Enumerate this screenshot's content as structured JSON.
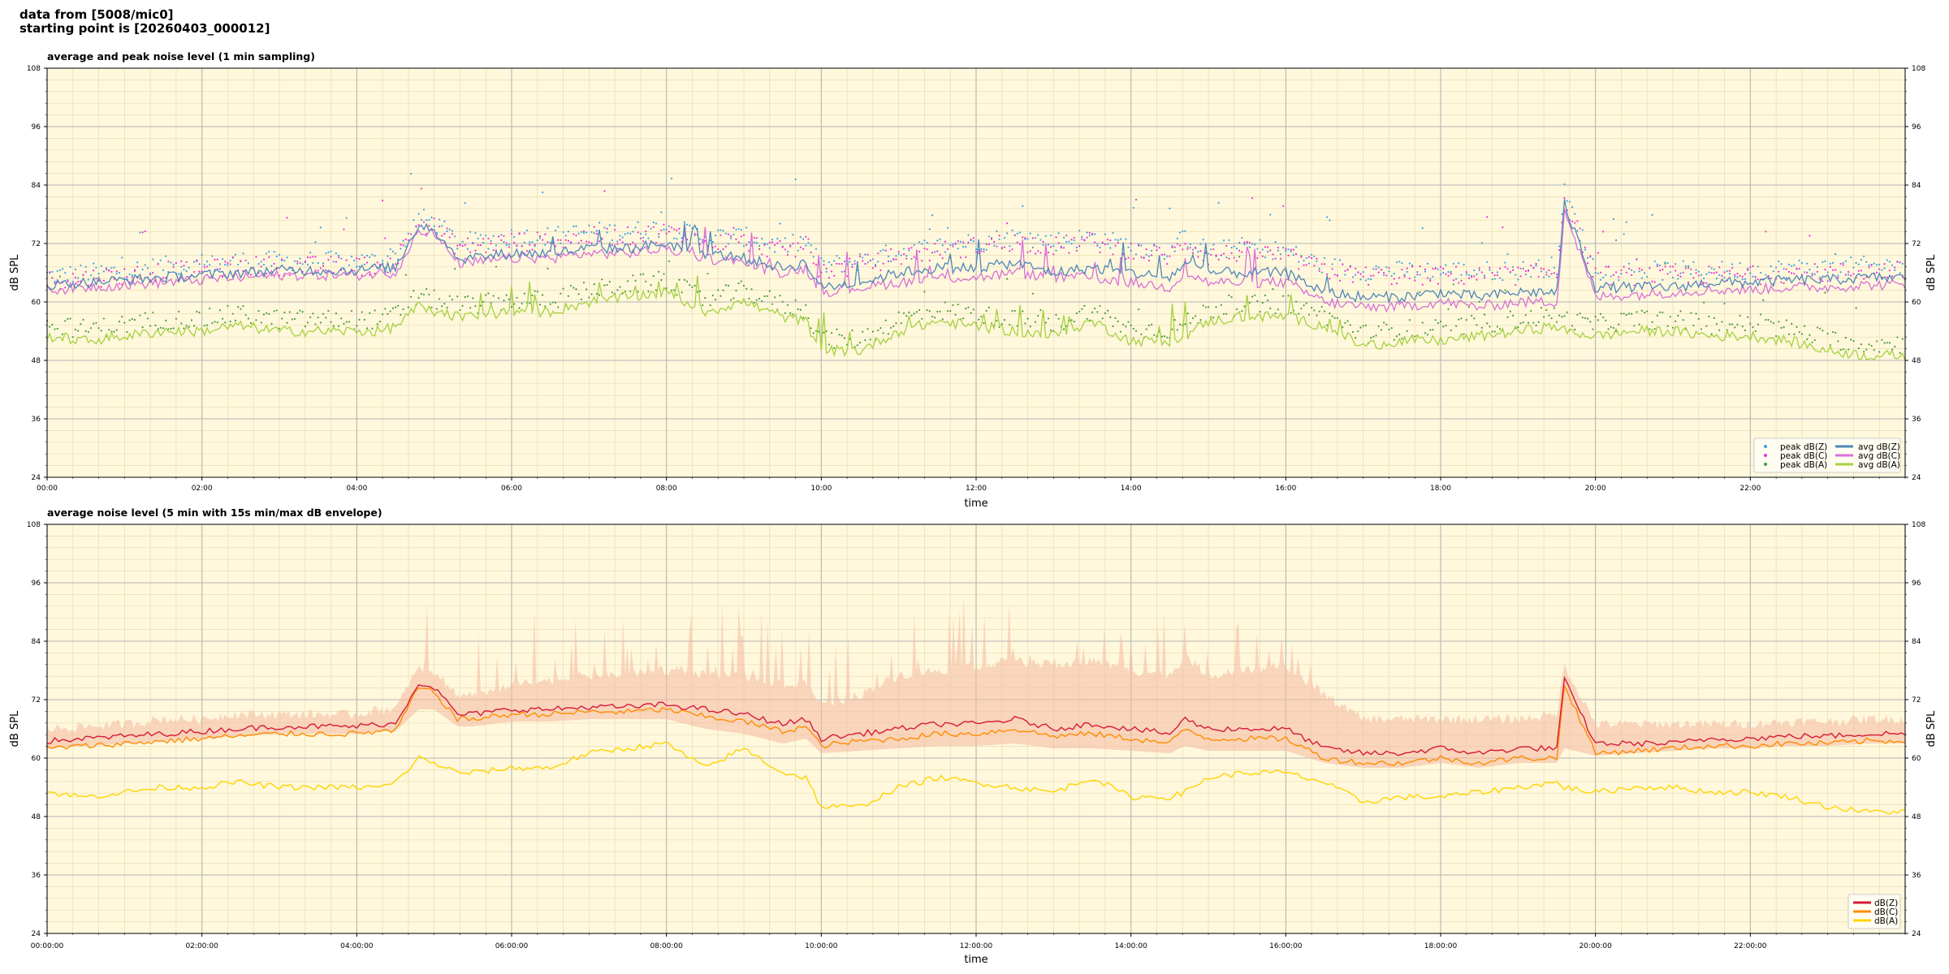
{
  "header": {
    "line1": "data from [5008/mic0]",
    "line2": "starting point is [20260403_000012]"
  },
  "chart_data": [
    {
      "type": "line",
      "title": "average and peak noise level (1 min sampling)",
      "xlabel": "time",
      "ylabel": "dB SPL",
      "ylim": [
        24,
        108
      ],
      "y_ticks": [
        24,
        36,
        48,
        60,
        72,
        84,
        96,
        108
      ],
      "xlim_hours": [
        0,
        24
      ],
      "x_tick_labels": [
        "00:00",
        "02:00",
        "04:00",
        "06:00",
        "08:00",
        "10:00",
        "12:00",
        "14:00",
        "16:00",
        "18:00",
        "20:00",
        "22:00"
      ],
      "grid": true,
      "legend_position": "bottom-right",
      "legend": [
        {
          "label": "peak dB(Z)",
          "kind": "dot"
        },
        {
          "label": "peak dB(C)",
          "kind": "dot"
        },
        {
          "label": "peak dB(A)",
          "kind": "dot"
        },
        {
          "label": "avg dB(Z)",
          "kind": "line"
        },
        {
          "label": "avg dB(C)",
          "kind": "line"
        },
        {
          "label": "avg dB(A)",
          "kind": "line"
        }
      ],
      "colors": {
        "peak_z": "#3da0e3",
        "peak_c": "#ee2fd6",
        "peak_a": "#4a9a3a",
        "avg_z": "#4f86b8",
        "avg_c": "#d86fd8",
        "avg_a": "#a6d13e"
      },
      "x": [
        0,
        0.5,
        1,
        1.5,
        2,
        2.4,
        2.5,
        3,
        3.5,
        4,
        4.3,
        4.5,
        4.8,
        5,
        5.3,
        5.5,
        6,
        6.5,
        7,
        7.5,
        8,
        8.5,
        9,
        9.5,
        9.8,
        10,
        10.5,
        11,
        11.5,
        12,
        12.5,
        13,
        13.5,
        14,
        14.5,
        14.7,
        15,
        15.5,
        16,
        16.5,
        17,
        17.5,
        18,
        18.5,
        19,
        19.5,
        19.6,
        20,
        20.5,
        21,
        21.5,
        22,
        22.5,
        23,
        23.5,
        24
      ],
      "series": [
        {
          "name": "avg dB(Z)",
          "values": [
            63.5,
            64,
            64.5,
            65,
            65.5,
            66,
            66,
            66.5,
            66.5,
            66.5,
            67,
            67,
            76,
            75,
            69,
            69,
            70,
            70,
            71,
            71,
            72,
            70,
            69,
            67,
            68,
            63,
            64,
            66,
            67,
            67,
            68,
            66,
            67,
            66,
            65,
            68,
            66,
            66,
            66,
            62,
            61,
            61,
            62,
            61,
            62,
            62,
            80,
            63,
            63,
            63,
            64,
            64,
            64.5,
            64.5,
            65,
            65
          ]
        },
        {
          "name": "avg dB(C)",
          "values": [
            62.5,
            63,
            63.5,
            64,
            64.5,
            65,
            65,
            65.5,
            65.5,
            65.5,
            66,
            66,
            75,
            74,
            68,
            68,
            69,
            69,
            70,
            70,
            71,
            69,
            68,
            66,
            67,
            62,
            63,
            64,
            65,
            65,
            66,
            65,
            65,
            64,
            63,
            66,
            64,
            64,
            64,
            60,
            59,
            59,
            60,
            59,
            60,
            60,
            79,
            61,
            61.5,
            62,
            62.5,
            62.5,
            63,
            63,
            63.5,
            63.5
          ]
        },
        {
          "name": "avg dB(A)",
          "values": [
            53,
            52,
            53,
            54,
            54,
            55,
            55,
            54,
            54,
            54,
            54,
            55,
            59,
            58,
            57,
            57,
            58,
            58,
            60,
            61,
            62,
            58,
            60,
            57,
            56,
            50,
            50,
            54,
            56,
            55,
            54,
            53,
            56,
            52,
            52,
            53,
            56,
            57,
            57,
            55,
            51,
            52,
            52,
            53,
            54,
            55,
            54,
            53,
            54,
            54,
            53,
            53,
            52,
            50,
            49,
            49
          ]
        },
        {
          "name": "peak dB(Z)",
          "values": [
            65,
            65.5,
            66,
            67,
            67,
            68,
            68,
            68,
            68,
            68,
            68,
            69,
            77,
            76,
            72,
            72,
            73,
            73,
            74,
            74,
            75,
            73,
            73,
            71,
            72,
            67,
            68,
            70,
            71,
            72,
            73,
            72,
            73,
            71,
            70,
            73,
            70,
            71,
            70,
            67,
            66,
            66,
            66,
            66,
            66,
            67,
            82,
            66,
            66,
            66,
            66,
            66,
            66.5,
            66.5,
            67,
            67
          ]
        },
        {
          "name": "peak dB(C)",
          "values": [
            64,
            64.5,
            65,
            66,
            66,
            67,
            67,
            67,
            67,
            67,
            67,
            68,
            76,
            75,
            71,
            71,
            72,
            72,
            73,
            73,
            74,
            72,
            72,
            70,
            71,
            66,
            67,
            69,
            70,
            71,
            72,
            71,
            72,
            70,
            69,
            72,
            69,
            70,
            69,
            66,
            65,
            65,
            65,
            65,
            65,
            66,
            81,
            65,
            65,
            65,
            65,
            65,
            65.5,
            65.5,
            66,
            66
          ]
        },
        {
          "name": "peak dB(A)",
          "values": [
            55,
            54,
            55,
            56,
            56,
            57,
            57,
            56,
            56,
            56,
            56,
            57,
            61,
            60,
            59,
            59,
            60,
            60,
            62,
            63,
            64,
            60,
            62,
            59,
            58,
            52,
            52,
            56,
            58,
            57,
            56,
            55,
            58,
            54,
            54,
            55,
            58,
            59,
            59,
            57,
            53,
            54,
            54,
            55,
            56,
            57,
            56,
            55,
            56,
            56,
            55,
            55,
            54,
            52,
            51,
            51
          ]
        }
      ]
    },
    {
      "type": "line",
      "title": "average noise level (5 min with 15s min/max dB envelope)",
      "xlabel": "time",
      "ylabel": "dB SPL",
      "ylim": [
        24,
        108
      ],
      "y_ticks": [
        24,
        36,
        48,
        60,
        72,
        84,
        96,
        108
      ],
      "xlim_hours": [
        0,
        24
      ],
      "x_tick_labels": [
        "00:00:00",
        "02:00:00",
        "04:00:00",
        "06:00:00",
        "08:00:00",
        "10:00:00",
        "12:00:00",
        "14:00:00",
        "16:00:00",
        "18:00:00",
        "20:00:00",
        "22:00:00"
      ],
      "grid": true,
      "legend_position": "bottom-right",
      "legend": [
        {
          "label": "dB(Z)",
          "kind": "line"
        },
        {
          "label": "dB(C)",
          "kind": "line"
        },
        {
          "label": "dB(A)",
          "kind": "line"
        }
      ],
      "colors": {
        "z": "#d7193b",
        "c": "#ff8c00",
        "a": "#ffd400",
        "envelope": "#f4b8a0"
      },
      "x": [
        0,
        0.5,
        1,
        1.5,
        2,
        2.4,
        2.5,
        3,
        3.5,
        4,
        4.3,
        4.5,
        4.8,
        5,
        5.3,
        5.5,
        6,
        6.5,
        7,
        7.5,
        8,
        8.5,
        9,
        9.5,
        9.8,
        10,
        10.5,
        11,
        11.5,
        12,
        12.5,
        13,
        13.5,
        14,
        14.5,
        14.7,
        15,
        15.5,
        16,
        16.5,
        17,
        17.5,
        18,
        18.5,
        19,
        19.5,
        19.6,
        20,
        20.5,
        21,
        21.5,
        22,
        22.5,
        23,
        23.5,
        24
      ],
      "series": [
        {
          "name": "dB(Z)",
          "values": [
            63.5,
            64,
            64.5,
            65,
            65.5,
            66,
            66,
            66.5,
            66.5,
            66.5,
            67,
            67,
            75.5,
            74.5,
            69,
            69,
            70,
            70,
            70.5,
            70.5,
            71,
            70,
            69,
            67,
            68,
            64,
            65,
            66,
            67,
            67,
            68,
            66,
            67,
            66,
            65,
            68,
            66,
            66,
            66,
            62,
            61,
            61,
            62,
            61,
            62,
            62,
            76,
            63,
            63,
            63,
            64,
            64,
            64.5,
            64.5,
            65,
            65
          ]
        },
        {
          "name": "dB(C)",
          "values": [
            62,
            62.5,
            63,
            63.5,
            64,
            64.5,
            64.5,
            65,
            65,
            65,
            65.5,
            65.5,
            74.5,
            73.5,
            68,
            68,
            69,
            69,
            69.5,
            69.5,
            70,
            68.5,
            67.5,
            65.5,
            66.5,
            62.5,
            63.5,
            64,
            65,
            65,
            66,
            64.5,
            65,
            64,
            63,
            66,
            64,
            64,
            64,
            60,
            59,
            59,
            60,
            59,
            60,
            60,
            75,
            61,
            61.5,
            62,
            62.5,
            62.5,
            63,
            63,
            63.5,
            63.5
          ]
        },
        {
          "name": "dB(A)",
          "values": [
            53,
            52,
            53,
            54,
            54,
            55,
            55,
            54,
            54,
            54,
            54,
            55,
            60,
            59,
            57,
            57,
            58,
            58,
            61,
            62,
            63,
            58,
            62,
            57,
            56,
            50,
            50,
            54,
            56,
            55,
            54,
            53,
            56,
            52,
            52,
            53,
            56,
            57,
            57,
            55,
            51,
            52,
            52,
            53,
            54,
            55,
            54,
            53,
            54,
            54,
            53,
            53,
            52,
            50,
            49,
            49
          ]
        },
        {
          "name": "envelope max",
          "values": [
            65,
            65.5,
            66,
            67,
            67,
            68,
            68,
            68,
            68,
            68,
            69,
            69,
            78,
            76,
            72,
            72,
            74,
            75,
            76,
            76,
            77,
            76,
            76,
            74,
            74,
            70,
            72,
            76,
            77,
            78,
            79,
            78,
            79,
            77,
            76,
            80,
            76,
            77,
            78,
            72,
            67,
            67,
            67,
            67,
            67,
            68,
            78,
            66,
            66,
            66,
            66,
            66,
            66.5,
            66.5,
            67,
            67
          ]
        },
        {
          "name": "envelope min",
          "values": [
            62,
            62.5,
            63,
            63.5,
            64,
            64.5,
            64.5,
            65,
            65,
            65,
            65.5,
            65.5,
            70,
            70,
            66.5,
            66.5,
            67.5,
            67.5,
            68,
            68,
            68,
            66,
            65,
            63,
            64,
            61,
            61.5,
            62,
            62.5,
            62.5,
            63,
            62,
            62,
            61.5,
            61,
            62.5,
            61.5,
            61.5,
            61.5,
            59,
            58,
            58,
            59,
            58,
            59,
            59,
            62,
            60.5,
            61,
            61.5,
            62,
            62,
            62.5,
            62.5,
            63,
            63
          ]
        }
      ]
    }
  ]
}
